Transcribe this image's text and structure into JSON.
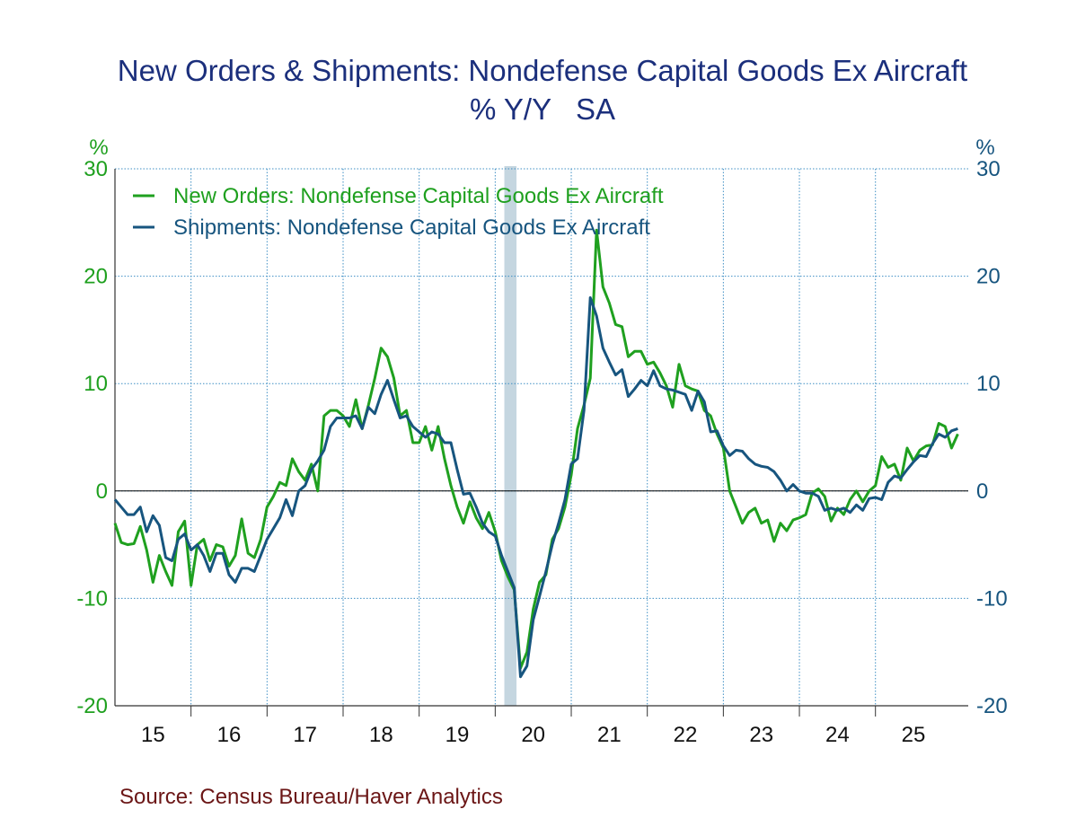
{
  "chart_data": {
    "type": "line",
    "title": "New Orders & Shipments: Nondefense Capital Goods Ex Aircraft",
    "subtitle": "% Y/Y   SA",
    "y_label": "%",
    "y2_label": "%",
    "source": "Source:  Census Bureau/Haver Analytics",
    "x": [
      15,
      15.083,
      15.167,
      15.25,
      15.333,
      15.417,
      15.5,
      15.583,
      15.667,
      15.75,
      15.833,
      15.917,
      16,
      16.083,
      16.167,
      16.25,
      16.333,
      16.417,
      16.5,
      16.583,
      16.667,
      16.75,
      16.833,
      16.917,
      17,
      17.083,
      17.167,
      17.25,
      17.333,
      17.417,
      17.5,
      17.583,
      17.667,
      17.75,
      17.833,
      17.917,
      18,
      18.083,
      18.167,
      18.25,
      18.333,
      18.417,
      18.5,
      18.583,
      18.667,
      18.75,
      18.833,
      18.917,
      19,
      19.083,
      19.167,
      19.25,
      19.333,
      19.417,
      19.5,
      19.583,
      19.667,
      19.75,
      19.833,
      19.917,
      20,
      20.083,
      20.167,
      20.25,
      20.333,
      20.417,
      20.5,
      20.583,
      20.667,
      20.75,
      20.833,
      20.917,
      21,
      21.083,
      21.167,
      21.25,
      21.333,
      21.417,
      21.5,
      21.583,
      21.667,
      21.75,
      21.833,
      21.917,
      22,
      22.083,
      22.167,
      22.25,
      22.333,
      22.417,
      22.5,
      22.583,
      22.667,
      22.75,
      22.833,
      22.917,
      23,
      23.083,
      23.167,
      23.25,
      23.333,
      23.417,
      23.5,
      23.583,
      23.667,
      23.75,
      23.833,
      23.917,
      24,
      24.083,
      24.167,
      24.25,
      24.333,
      24.417,
      24.5,
      24.583,
      24.667,
      24.75,
      24.833,
      24.917,
      25,
      25.083,
      25.167,
      25.25,
      25.333,
      25.417,
      25.5,
      25.583,
      25.667,
      25.75,
      25.833,
      25.917,
      26,
      26.083
    ],
    "series": [
      {
        "name": "New Orders: Nondefense Capital Goods Ex Aircraft",
        "color": "#1fa01f",
        "values": [
          -3,
          -4.8,
          -5,
          -4.9,
          -3.3,
          -5.5,
          -8.5,
          -6,
          -7.5,
          -8.8,
          -3.8,
          -2.8,
          -8.8,
          -5,
          -4.5,
          -6.5,
          -5,
          -5.2,
          -7,
          -6,
          -2.6,
          -5.8,
          -6.2,
          -4.5,
          -1.5,
          -0.5,
          0.8,
          0.5,
          3,
          1.8,
          1,
          2.5,
          0,
          7,
          7.5,
          7.5,
          7,
          6,
          8.5,
          5.8,
          8,
          10.5,
          13.3,
          12.5,
          10.5,
          7,
          7.5,
          4.5,
          4.5,
          6,
          3.8,
          6,
          3,
          0.5,
          -1.5,
          -3,
          -1,
          -2.5,
          -3.5,
          -2,
          -3.8,
          -6.5,
          -8,
          -9.2,
          -16.5,
          -15,
          -11,
          -8.5,
          -7.8,
          -4.5,
          -3.5,
          -1.5,
          1.5,
          5.8,
          8,
          10.5,
          24.3,
          19,
          17.5,
          15.5,
          15.3,
          12.5,
          13,
          13,
          11.8,
          12,
          11,
          9.8,
          7.8,
          11.8,
          9.8,
          9.5,
          9.3,
          7.5,
          7,
          5.3,
          4,
          0,
          -1.5,
          -3,
          -2,
          -1.6,
          -3,
          -2.7,
          -4.7,
          -3,
          -3.7,
          -2.7,
          -2.5,
          -2.2,
          -0.2,
          0.2,
          -0.5,
          -2.8,
          -1.6,
          -2.2,
          -0.8,
          0,
          -1,
          0,
          0.5,
          3.2,
          2.2,
          2.5,
          1,
          4,
          2.8,
          3.8,
          4.2,
          4.3,
          6.3,
          6,
          4,
          5.3
        ]
      },
      {
        "name": "Shipments: Nondefense Capital Goods Ex Aircraft",
        "color": "#17557f",
        "values": [
          -0.8,
          -1.5,
          -2.2,
          -2.2,
          -1.5,
          -3.8,
          -2.3,
          -3.2,
          -6.2,
          -6.5,
          -4.5,
          -4,
          -5.5,
          -5,
          -6,
          -7.5,
          -5.8,
          -5.8,
          -7.8,
          -8.5,
          -7.2,
          -7.2,
          -7.5,
          -6,
          -4.5,
          -3.5,
          -2.5,
          -0.8,
          -2.3,
          0,
          0.5,
          2,
          2.8,
          3.8,
          6,
          6.8,
          6.8,
          6.8,
          7,
          5.8,
          7.8,
          7.2,
          9,
          10.3,
          8.5,
          6.8,
          7,
          6,
          5.5,
          5,
          5.5,
          5.3,
          4.5,
          4.5,
          2,
          -0.3,
          -0.2,
          -1.5,
          -3,
          -3.8,
          -4.2,
          -6,
          -7.5,
          -9,
          -17.3,
          -16.3,
          -12,
          -9.8,
          -7.5,
          -5,
          -3,
          -0.8,
          2.5,
          3,
          7.5,
          18,
          16.3,
          13.3,
          12,
          10.8,
          11.3,
          8.8,
          9.5,
          10.3,
          9.8,
          11.2,
          9.8,
          9.5,
          9.4,
          9.2,
          9,
          7.5,
          9.3,
          8.3,
          5.5,
          5.6,
          4.2,
          3.3,
          3.8,
          3.7,
          3,
          2.5,
          2.3,
          2.2,
          1.8,
          1,
          0,
          0.6,
          0,
          -0.2,
          -0.2,
          -0.5,
          -1.8,
          -1.6,
          -1.8,
          -1.6,
          -2,
          -1.3,
          -1.8,
          -0.7,
          -0.6,
          -0.8,
          0.8,
          1.4,
          1.2,
          2,
          2.7,
          3.3,
          3.2,
          4.4,
          5.3,
          5,
          5.6,
          5.8
        ]
      }
    ],
    "xlim": [
      15,
      26.22
    ],
    "xticks": [
      16,
      17,
      18,
      19,
      20,
      21,
      22,
      23,
      24,
      25
    ],
    "x_labels": [
      {
        "value": 15.5,
        "label": "15"
      },
      {
        "value": 16.5,
        "label": "16"
      },
      {
        "value": 17.5,
        "label": "17"
      },
      {
        "value": 18.5,
        "label": "18"
      },
      {
        "value": 19.5,
        "label": "19"
      },
      {
        "value": 20.5,
        "label": "20"
      },
      {
        "value": 21.5,
        "label": "21"
      },
      {
        "value": 22.5,
        "label": "22"
      },
      {
        "value": 23.5,
        "label": "23"
      },
      {
        "value": 24.5,
        "label": "24"
      },
      {
        "value": 25.5,
        "label": "25"
      }
    ],
    "ylim": [
      -20,
      30
    ],
    "yticks": [
      -20,
      -10,
      0,
      10,
      20,
      30
    ],
    "y2lim": [
      -20,
      30
    ],
    "y2ticks": [
      -20,
      -10,
      0,
      10,
      20,
      30
    ],
    "shaded": [
      {
        "start": 20.12,
        "end": 20.28,
        "color": "#c5d6e0"
      }
    ],
    "grid": true,
    "legend": "top-left"
  }
}
